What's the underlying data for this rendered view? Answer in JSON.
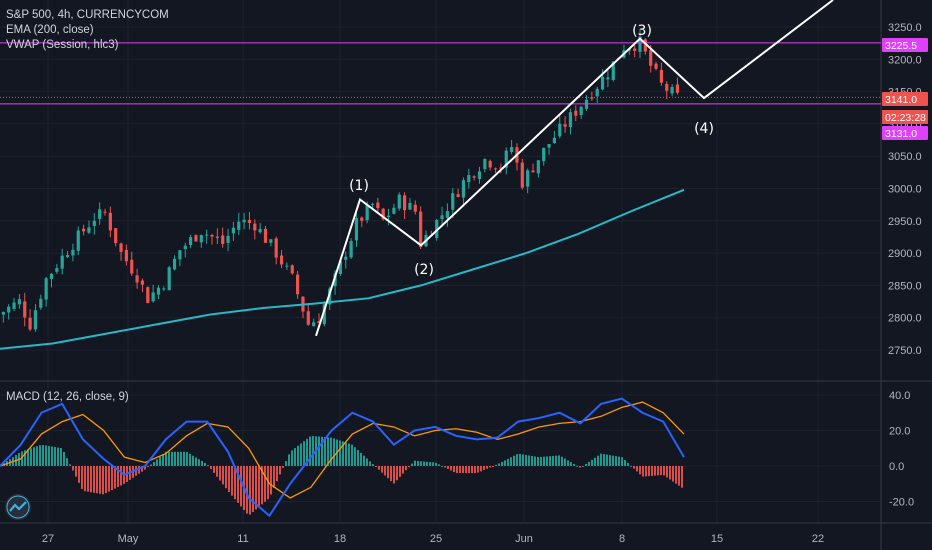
{
  "legend": {
    "symbol": "S&P 500, 4h, CURRENCYCOM",
    "ema": "EMA (200, close)",
    "vwap": "VWAP (Session, hlc3)",
    "macd": "MACD (12, 26, close, 9)"
  },
  "colors": {
    "background": "#131722",
    "up": "#26a69a",
    "down": "#ef5350",
    "ema": "#26b9c8",
    "vwap": "#e040fb",
    "wave": "#ffffff",
    "macd_line": "#2962ff",
    "signal_line": "#ff9800",
    "grid": "#1e222d",
    "text": "#b2b5be"
  },
  "price_tags": [
    {
      "value": 3225.5,
      "text": "3225.5",
      "color": "#e040fb",
      "text_color": "#ffffff"
    },
    {
      "value": 3141.0,
      "text": "3141.0",
      "color": "#ef5350",
      "text_color": "#ffffff"
    },
    {
      "value": 3131.0,
      "text": "3131.0",
      "color": "#e040fb",
      "text_color": "#ffffff"
    }
  ],
  "countdown": {
    "text": "02:23:28",
    "color": "#ef5350"
  },
  "chart_data": [
    {
      "type": "candlestick",
      "x_ticks": [
        "27",
        "May",
        "11",
        "18",
        "25",
        "Jun",
        "8",
        "15",
        "22"
      ],
      "y_ticks": [
        "3250.0",
        "3200.0",
        "3150.0",
        "3100.0",
        "3050.0",
        "3000.0",
        "2950.0",
        "2900.0",
        "2850.0",
        "2800.0",
        "2750.0"
      ],
      "ylim": [
        2730,
        3268
      ],
      "ema_200": [
        2752,
        2760,
        2775,
        2790,
        2805,
        2815,
        2822,
        2830,
        2850,
        2875,
        2900,
        2930,
        2965,
        2998
      ],
      "vwap_level": 3225.5,
      "last_price": 3141.0,
      "secondary_level": 3131.0,
      "elliott_waves": [
        {
          "label": "(1)",
          "price": 2983
        },
        {
          "label": "(2)",
          "price": 2912
        },
        {
          "label": "(3)",
          "price": 3232
        },
        {
          "label": "(4)",
          "price": 3140
        }
      ]
    },
    {
      "type": "histogram+line",
      "title": "MACD (12, 26, close, 9)",
      "y_ticks": [
        "40.0",
        "20.0",
        "0.0",
        "-20.0"
      ],
      "ylim": [
        -28,
        45
      ],
      "macd": [
        0,
        12,
        30,
        35,
        15,
        4,
        -5,
        0,
        15,
        25,
        25,
        8,
        -18,
        -28,
        -10,
        5,
        20,
        30,
        25,
        12,
        20,
        22,
        17,
        15,
        16,
        25,
        27,
        30,
        24,
        35,
        38,
        30,
        25,
        5
      ],
      "signal": [
        0,
        4,
        18,
        25,
        29,
        20,
        5,
        2,
        7,
        17,
        24,
        22,
        10,
        -10,
        -18,
        -12,
        4,
        18,
        24,
        22,
        17,
        20,
        21,
        19,
        15,
        18,
        22,
        24,
        25,
        28,
        33,
        36,
        30,
        18
      ]
    }
  ]
}
